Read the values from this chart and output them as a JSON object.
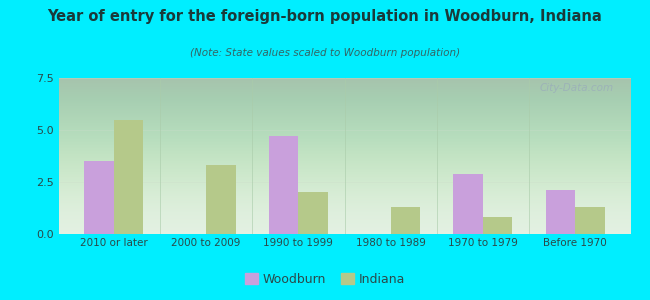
{
  "title": "Year of entry for the foreign-born population in Woodburn, Indiana",
  "subtitle": "(Note: State values scaled to Woodburn population)",
  "categories": [
    "2010 or later",
    "2000 to 2009",
    "1990 to 1999",
    "1980 to 1989",
    "1970 to 1979",
    "Before 1970"
  ],
  "woodburn_values": [
    3.5,
    0.0,
    4.7,
    0.0,
    2.9,
    2.1
  ],
  "indiana_values": [
    5.5,
    3.3,
    2.0,
    1.3,
    0.8,
    1.3
  ],
  "woodburn_color": "#c9a0dc",
  "indiana_color": "#b5c98a",
  "background_outer": "#00eeff",
  "background_inner_top": "#e8f5e8",
  "background_inner_bottom": "#d0e8d0",
  "ylim": [
    0,
    7.5
  ],
  "yticks": [
    0,
    2.5,
    5,
    7.5
  ],
  "bar_width": 0.32,
  "legend_woodburn": "Woodburn",
  "legend_indiana": "Indiana",
  "title_color": "#1a3a3a",
  "subtitle_color": "#336666"
}
